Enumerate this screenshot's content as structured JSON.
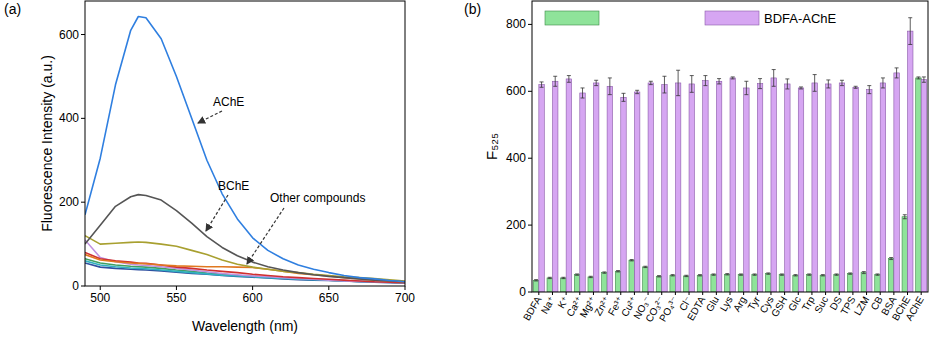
{
  "chart_data": [
    {
      "type": "line",
      "panel": "(a)",
      "x_label": "Wavelength (nm)",
      "y_label": "Fluorescence Intensity (a.u.)",
      "x": [
        490,
        500,
        510,
        520,
        525,
        530,
        540,
        550,
        560,
        570,
        580,
        590,
        600,
        610,
        620,
        630,
        640,
        650,
        660,
        670,
        680,
        690,
        700
      ],
      "xlim": [
        490,
        700
      ],
      "xticks": [
        500,
        550,
        600,
        650,
        700
      ],
      "ylim": [
        0,
        680
      ],
      "yticks": [
        0,
        200,
        400,
        600
      ],
      "grid": false,
      "annotations": [
        "AChE",
        "BChE",
        "Other compounds"
      ],
      "series": [
        {
          "name": "AChE",
          "color": "#2f7fe0",
          "values": [
            170,
            305,
            480,
            610,
            643,
            640,
            590,
            500,
            400,
            300,
            220,
            160,
            115,
            85,
            65,
            50,
            40,
            32,
            25,
            20,
            17,
            13,
            10
          ]
        },
        {
          "name": "BChE",
          "color": "#555555",
          "values": [
            100,
            145,
            190,
            213,
            218,
            216,
            205,
            180,
            150,
            118,
            92,
            72,
            57,
            46,
            38,
            32,
            27,
            23,
            20,
            17,
            14,
            12,
            10
          ]
        },
        {
          "color": "#a8a030",
          "values": [
            120,
            100,
            102,
            104,
            105,
            104,
            100,
            95,
            85,
            75,
            62,
            52,
            45,
            40,
            35,
            32,
            28,
            25,
            22,
            20,
            18,
            15,
            12
          ]
        },
        {
          "color": "#e07820",
          "values": [
            75,
            62,
            58,
            55,
            54,
            53,
            50,
            48,
            47,
            46,
            46,
            45,
            44,
            40,
            35,
            30,
            27,
            24,
            20,
            17,
            14,
            12,
            10
          ]
        },
        {
          "color": "#d03030",
          "values": [
            80,
            65,
            60,
            57,
            55,
            54,
            50,
            45,
            42,
            38,
            35,
            32,
            28,
            25,
            22,
            20,
            18,
            16,
            14,
            12,
            10,
            9,
            8
          ]
        },
        {
          "color": "#c090e0",
          "values": [
            110,
            68,
            58,
            52,
            50,
            49,
            46,
            42,
            38,
            34,
            30,
            27,
            24,
            22,
            20,
            18,
            16,
            14,
            12,
            11,
            10,
            9,
            8
          ]
        },
        {
          "color": "#30b0c0",
          "values": [
            60,
            50,
            46,
            43,
            42,
            41,
            38,
            35,
            32,
            29,
            26,
            24,
            22,
            20,
            18,
            16,
            15,
            14,
            12,
            11,
            10,
            9,
            8
          ]
        },
        {
          "color": "#3050a0",
          "values": [
            55,
            45,
            42,
            40,
            39,
            38,
            36,
            33,
            30,
            28,
            25,
            23,
            21,
            19,
            17,
            15,
            14,
            13,
            12,
            10,
            9,
            8,
            7
          ]
        },
        {
          "color": "#40a060",
          "values": [
            65,
            55,
            50,
            47,
            46,
            45,
            42,
            38,
            35,
            31,
            28,
            25,
            23,
            21,
            19,
            17,
            15,
            14,
            12,
            11,
            10,
            9,
            8
          ]
        }
      ]
    },
    {
      "type": "bar",
      "panel": "(b)",
      "y_label": "F₅₂₅",
      "categories": [
        "BDFA",
        "Na⁺",
        "K⁺",
        "Ca²⁺",
        "Mg²⁺",
        "Zn²⁺",
        "Fe³⁺",
        "Cu²⁺",
        "NO₃⁻",
        "CO₃²⁻",
        "PO₄³⁻",
        "Cl⁻",
        "EDTA",
        "Glu",
        "Lys",
        "Arg",
        "Tyr",
        "Cys",
        "GSH",
        "Glc",
        "Trp",
        "Suc",
        "DS",
        "TPS",
        "LZM",
        "CB",
        "BSA",
        "BChE",
        "AChE"
      ],
      "ylim": [
        0,
        870
      ],
      "yticks": [
        0,
        200,
        400,
        600,
        800
      ],
      "grid": false,
      "legend": "top",
      "series": [
        {
          "color": "#8fe39a",
          "values": [
            35,
            42,
            42,
            52,
            45,
            58,
            62,
            95,
            75,
            47,
            50,
            48,
            50,
            52,
            53,
            52,
            52,
            55,
            52,
            50,
            52,
            50,
            52,
            55,
            58,
            52,
            100,
            225,
            640
          ],
          "errors": [
            2,
            2,
            2,
            2,
            2,
            2,
            2,
            2,
            2,
            2,
            2,
            2,
            2,
            2,
            2,
            2,
            2,
            2,
            2,
            2,
            2,
            2,
            2,
            2,
            3,
            2,
            3,
            6,
            3
          ]
        },
        {
          "name": "BDFA-AChE",
          "color": "#d6a6f2",
          "values": [
            620,
            630,
            637,
            595,
            625,
            615,
            582,
            598,
            625,
            620,
            625,
            622,
            632,
            630,
            640,
            610,
            623,
            640,
            622,
            610,
            625,
            622,
            625,
            612,
            605,
            625,
            655,
            780,
            635
          ],
          "errors": [
            8,
            15,
            10,
            15,
            8,
            25,
            12,
            5,
            5,
            25,
            38,
            25,
            15,
            8,
            3,
            20,
            15,
            25,
            15,
            3,
            25,
            12,
            8,
            3,
            12,
            15,
            15,
            40,
            8
          ]
        }
      ]
    }
  ]
}
